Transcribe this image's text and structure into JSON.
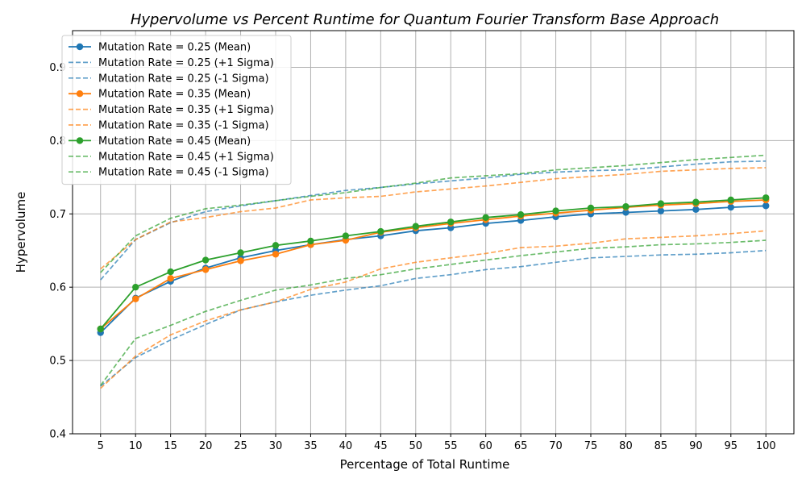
{
  "chart_data": {
    "type": "line",
    "title": "Hypervolume vs Percent Runtime for Quantum Fourier Transform Base Approach",
    "xlabel": "Percentage of Total Runtime",
    "ylabel": "Hypervolume",
    "x": [
      5,
      10,
      15,
      20,
      25,
      30,
      35,
      40,
      45,
      50,
      55,
      60,
      65,
      70,
      75,
      80,
      85,
      90,
      95,
      100
    ],
    "ylim": [
      0.4,
      0.95
    ],
    "yticks": [
      0.4,
      0.5,
      0.6,
      0.7,
      0.8,
      0.9
    ],
    "grid": true,
    "legend_position": "top-left",
    "series": [
      {
        "name": "Mutation Rate = 0.25 (Mean)",
        "color": "#1f77b4",
        "style": "solid-marker",
        "values": [
          0.538,
          0.585,
          0.608,
          0.626,
          0.64,
          0.65,
          0.658,
          0.665,
          0.67,
          0.677,
          0.681,
          0.687,
          0.691,
          0.696,
          0.7,
          0.702,
          0.704,
          0.706,
          0.709,
          0.711
        ]
      },
      {
        "name": "Mutation Rate = 0.25 (+1 Sigma)",
        "color": "#1f77b4",
        "style": "dashed",
        "values": [
          0.61,
          0.665,
          0.688,
          0.703,
          0.711,
          0.718,
          0.725,
          0.732,
          0.736,
          0.741,
          0.745,
          0.749,
          0.754,
          0.757,
          0.759,
          0.76,
          0.764,
          0.768,
          0.771,
          0.772
        ]
      },
      {
        "name": "Mutation Rate = 0.25 (-1 Sigma)",
        "color": "#1f77b4",
        "style": "dashed",
        "values": [
          0.465,
          0.504,
          0.528,
          0.549,
          0.569,
          0.58,
          0.589,
          0.596,
          0.602,
          0.612,
          0.617,
          0.624,
          0.628,
          0.634,
          0.64,
          0.642,
          0.644,
          0.645,
          0.647,
          0.65
        ]
      },
      {
        "name": "Mutation Rate = 0.35 (Mean)",
        "color": "#ff7f0e",
        "style": "solid-marker",
        "values": [
          0.543,
          0.584,
          0.612,
          0.624,
          0.636,
          0.645,
          0.658,
          0.664,
          0.675,
          0.681,
          0.687,
          0.692,
          0.697,
          0.701,
          0.705,
          0.709,
          0.712,
          0.714,
          0.717,
          0.719
        ]
      },
      {
        "name": "Mutation Rate = 0.35 (+1 Sigma)",
        "color": "#ff7f0e",
        "style": "dashed",
        "values": [
          0.625,
          0.665,
          0.689,
          0.695,
          0.703,
          0.708,
          0.719,
          0.722,
          0.724,
          0.73,
          0.734,
          0.738,
          0.743,
          0.748,
          0.751,
          0.754,
          0.758,
          0.76,
          0.762,
          0.763
        ]
      },
      {
        "name": "Mutation Rate = 0.35 (-1 Sigma)",
        "color": "#ff7f0e",
        "style": "dashed",
        "values": [
          0.462,
          0.506,
          0.535,
          0.554,
          0.569,
          0.58,
          0.597,
          0.607,
          0.625,
          0.634,
          0.64,
          0.646,
          0.654,
          0.656,
          0.66,
          0.666,
          0.668,
          0.67,
          0.673,
          0.677
        ]
      },
      {
        "name": "Mutation Rate = 0.45 (Mean)",
        "color": "#2ca02c",
        "style": "solid-marker",
        "values": [
          0.543,
          0.6,
          0.621,
          0.637,
          0.647,
          0.657,
          0.663,
          0.67,
          0.676,
          0.683,
          0.689,
          0.695,
          0.699,
          0.704,
          0.708,
          0.71,
          0.714,
          0.716,
          0.719,
          0.722
        ]
      },
      {
        "name": "Mutation Rate = 0.45 (+1 Sigma)",
        "color": "#2ca02c",
        "style": "dashed",
        "values": [
          0.62,
          0.67,
          0.694,
          0.707,
          0.712,
          0.718,
          0.724,
          0.729,
          0.736,
          0.742,
          0.749,
          0.752,
          0.755,
          0.76,
          0.763,
          0.766,
          0.77,
          0.774,
          0.777,
          0.78
        ]
      },
      {
        "name": "Mutation Rate = 0.45 (-1 Sigma)",
        "color": "#2ca02c",
        "style": "dashed",
        "values": [
          0.466,
          0.53,
          0.548,
          0.567,
          0.582,
          0.596,
          0.603,
          0.612,
          0.617,
          0.625,
          0.631,
          0.637,
          0.643,
          0.648,
          0.653,
          0.655,
          0.658,
          0.659,
          0.661,
          0.664
        ]
      }
    ]
  }
}
